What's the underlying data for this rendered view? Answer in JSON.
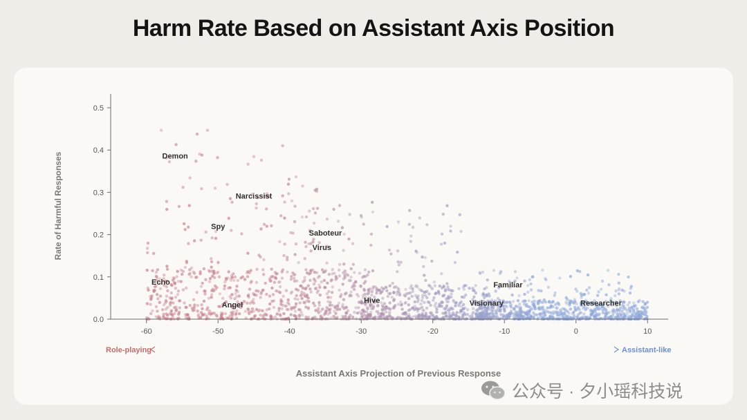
{
  "colors": {
    "role": "#c86a6a",
    "assistant": "#6b8fd6",
    "axis": "#6b6a66",
    "label": "#2f2e2b",
    "pointRole": "#c87f8c",
    "pointAssistant": "#8fa9dc"
  },
  "chart_data": {
    "type": "scatter",
    "title": "Harm Rate Based on Assistant Axis Position",
    "xlabel": "Assistant Axis Projection of Previous Response",
    "ylabel": "Rate of Harmful Responses",
    "xlim": [
      -65,
      14
    ],
    "ylim": [
      0,
      0.52
    ],
    "x_ticks": [
      -60,
      -50,
      -40,
      -30,
      -20,
      -10,
      0,
      10
    ],
    "x_tick_labels": [
      "-60",
      "-50",
      "-40",
      "-30",
      "-20",
      "-10",
      "0",
      "10"
    ],
    "y_ticks": [
      0,
      0.1,
      0.2,
      0.3,
      0.4,
      0.5
    ],
    "y_tick_labels": [
      "0.0",
      "0.1",
      "0.2",
      "0.3",
      "0.4",
      "0.5"
    ],
    "direction": {
      "left": "Role-playing",
      "right": "Assistant-like"
    },
    "annotations": [
      {
        "text": "Demon",
        "x": -56,
        "y": 0.38
      },
      {
        "text": "Narcissist",
        "x": -45,
        "y": 0.285
      },
      {
        "text": "Spy",
        "x": -50,
        "y": 0.213
      },
      {
        "text": "Saboteur",
        "x": -35,
        "y": 0.198
      },
      {
        "text": "Virus",
        "x": -35.5,
        "y": 0.163
      },
      {
        "text": "Echo",
        "x": -58,
        "y": 0.082
      },
      {
        "text": "Angel",
        "x": -48,
        "y": 0.028
      },
      {
        "text": "Hive",
        "x": -28.5,
        "y": 0.038
      },
      {
        "text": "Familiar",
        "x": -9.5,
        "y": 0.075
      },
      {
        "text": "Visionary",
        "x": -12.5,
        "y": 0.032
      },
      {
        "text": "Researcher",
        "x": 3.5,
        "y": 0.032
      }
    ],
    "point_clusters": [
      {
        "name": "outliers-left",
        "x_range": [
          -60,
          -36
        ],
        "y_range": [
          0.1,
          0.49
        ],
        "count": 120
      },
      {
        "name": "mid-spread",
        "x_range": [
          -40,
          -16
        ],
        "y_range": [
          0.05,
          0.28
        ],
        "count": 110
      },
      {
        "name": "role-dense",
        "x_range": [
          -60,
          -28
        ],
        "y_range": [
          0.0,
          0.12
        ],
        "count": 650
      },
      {
        "name": "transition",
        "x_range": [
          -30,
          -12
        ],
        "y_range": [
          0.0,
          0.08
        ],
        "count": 450
      },
      {
        "name": "assistant-dense",
        "x_range": [
          -14,
          10
        ],
        "y_range": [
          0.0,
          0.045
        ],
        "count": 700
      },
      {
        "name": "assistant-upper",
        "x_range": [
          -14,
          8
        ],
        "y_range": [
          0.04,
          0.12
        ],
        "count": 90
      }
    ]
  },
  "watermark": {
    "text": "公众号 · 夕小瑶科技说",
    "icon": "wechat-icon"
  }
}
